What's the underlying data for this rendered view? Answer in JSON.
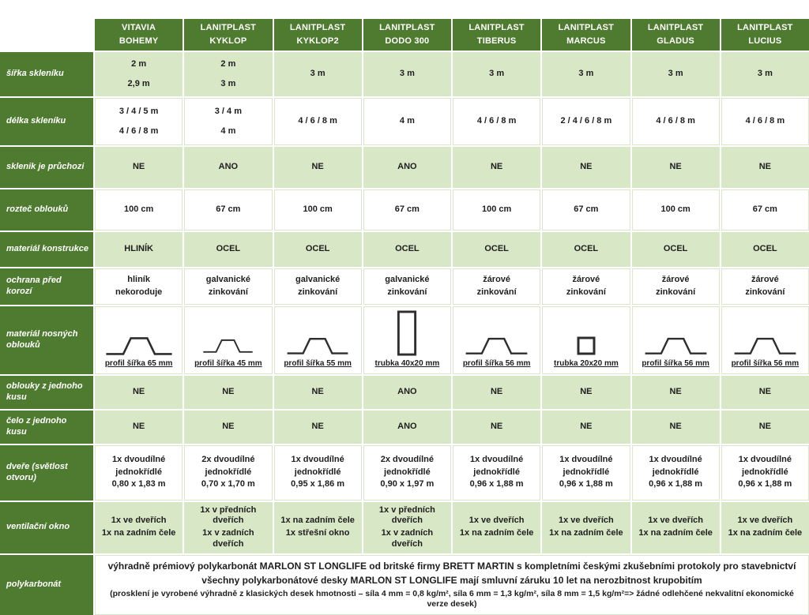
{
  "colors": {
    "dark_green": "#4e7b2f",
    "light_green": "#d8e7c6",
    "text_dark": "#1e1e1e",
    "white_cell_border": "#dbe5cd"
  },
  "table": {
    "products": [
      [
        "VITAVIA",
        "BOHEMY"
      ],
      [
        "LANITPLAST",
        "KYKLOP"
      ],
      [
        "LANITPLAST",
        "KYKLOP2"
      ],
      [
        "LANITPLAST",
        "DODO 300"
      ],
      [
        "LANITPLAST",
        "TIBERUS"
      ],
      [
        "LANITPLAST",
        "MARCUS"
      ],
      [
        "LANITPLAST",
        "GLADUS"
      ],
      [
        "LANITPLAST",
        "LUCIUS"
      ]
    ],
    "rows": [
      {
        "label": "šířka skleníku",
        "bg": "green",
        "min_h": 56,
        "spread": true,
        "cells": [
          [
            "2 m",
            "2,9 m"
          ],
          [
            "2 m",
            "3 m"
          ],
          [
            "3 m"
          ],
          [
            "3 m"
          ],
          [
            "3 m"
          ],
          [
            "3 m"
          ],
          [
            "3 m"
          ],
          [
            "3 m"
          ]
        ]
      },
      {
        "label": "délka skleníku",
        "bg": "white",
        "min_h": 60,
        "spread": true,
        "cells": [
          [
            "3 / 4 / 5 m",
            "4 / 6 / 8 m"
          ],
          [
            "3 / 4 m",
            "4 m"
          ],
          [
            "4 / 6 / 8 m"
          ],
          [
            "4 m"
          ],
          [
            "4 / 6 / 8 m"
          ],
          [
            "2 / 4 / 6 / 8 m"
          ],
          [
            "4 / 6 / 8 m"
          ],
          [
            "4 / 6 / 8 m"
          ]
        ]
      },
      {
        "label": "sklenik je průchozi",
        "bg": "green",
        "min_h": 52,
        "cells": [
          [
            "NE"
          ],
          [
            "ANO"
          ],
          [
            "NE"
          ],
          [
            "ANO"
          ],
          [
            "NE"
          ],
          [
            "NE"
          ],
          [
            "NE"
          ],
          [
            "NE"
          ]
        ]
      },
      {
        "label": "rozteč oblouků",
        "bg": "white",
        "min_h": 52,
        "cells": [
          [
            "100 cm"
          ],
          [
            "67 cm"
          ],
          [
            "100 cm"
          ],
          [
            "67 cm"
          ],
          [
            "100 cm"
          ],
          [
            "67 cm"
          ],
          [
            "100 cm"
          ],
          [
            "67 cm"
          ]
        ]
      },
      {
        "label": "materiál konstrukce",
        "bg": "green",
        "min_h": 44,
        "cells": [
          [
            "HLINÍK"
          ],
          [
            "OCEL"
          ],
          [
            "OCEL"
          ],
          [
            "OCEL"
          ],
          [
            "OCEL"
          ],
          [
            "OCEL"
          ],
          [
            "OCEL"
          ],
          [
            "OCEL"
          ]
        ]
      },
      {
        "label": "ochrana před korozí",
        "bg": "white",
        "min_h": 46,
        "cells": [
          [
            "hliník",
            "nekoroduje"
          ],
          [
            "galvanické",
            "zinkování"
          ],
          [
            "galvanické",
            "zinkování"
          ],
          [
            "galvanické",
            "zinkování"
          ],
          [
            "žárové",
            "zinkování"
          ],
          [
            "žárové",
            "zinkování"
          ],
          [
            "žárové",
            "zinkování"
          ],
          [
            "žárové",
            "zinkování"
          ]
        ]
      },
      {
        "label": "materiál nosných oblouků",
        "bg": "white",
        "min_h": 84,
        "type": "profiles",
        "profiles": [
          {
            "shape": "hat",
            "mm": 65,
            "caption": "profil šířka 65 mm"
          },
          {
            "shape": "hat",
            "mm": 45,
            "caption": "profil šířka 45 mm"
          },
          {
            "shape": "hat",
            "mm": 55,
            "caption": "profil šířka 55 mm"
          },
          {
            "shape": "vrect",
            "mm": 40,
            "caption": "trubka 40x20 mm"
          },
          {
            "shape": "hat",
            "mm": 56,
            "caption": "profil šířka 56 mm"
          },
          {
            "shape": "square",
            "mm": 20,
            "caption": "trubka 20x20 mm"
          },
          {
            "shape": "hat",
            "mm": 56,
            "caption": "profil šířka 56 mm"
          },
          {
            "shape": "hat",
            "mm": 56,
            "caption": "profil šířka 56 mm"
          }
        ]
      },
      {
        "label": "oblouky z jednoho kusu",
        "bg": "green",
        "min_h": 42,
        "cells": [
          [
            "NE"
          ],
          [
            "NE"
          ],
          [
            "NE"
          ],
          [
            "ANO"
          ],
          [
            "NE"
          ],
          [
            "NE"
          ],
          [
            "NE"
          ],
          [
            "NE"
          ]
        ]
      },
      {
        "label": "čelo z jednoho kusu",
        "bg": "green",
        "min_h": 42,
        "cells": [
          [
            "NE"
          ],
          [
            "NE"
          ],
          [
            "NE"
          ],
          [
            "ANO"
          ],
          [
            "NE"
          ],
          [
            "NE"
          ],
          [
            "NE"
          ],
          [
            "NE"
          ]
        ]
      },
      {
        "label": "dveře (světlost otvoru)",
        "bg": "white",
        "min_h": 70,
        "cells": [
          [
            "1x dvoudílné",
            "jednokřídlé",
            "0,80 x 1,83 m"
          ],
          [
            "2x dvoudílné",
            "jednokřídlé",
            "0,70 x 1,70 m"
          ],
          [
            "1x dvoudílné",
            "jednokřídlé",
            "0,95 x 1,86 m"
          ],
          [
            "2x dvoudílné",
            "jednokřídlé",
            "0,90 x 1,97 m"
          ],
          [
            "1x dvoudílné",
            "jednokřídlé",
            "0,96 x 1,88 m"
          ],
          [
            "1x dvoudílné",
            "jednokřídlé",
            "0,96 x 1,88 m"
          ],
          [
            "1x dvoudílné",
            "jednokřídlé",
            "0,96 x 1,88 m"
          ],
          [
            "1x dvoudílné",
            "jednokřídlé",
            "0,96 x 1,88 m"
          ]
        ]
      },
      {
        "label": "ventilační okno",
        "bg": "green",
        "min_h": 54,
        "cells": [
          [
            "1x ve dveřích",
            "1x na zadním čele"
          ],
          [
            "1x v předních dveřích",
            "1x v zadních dveřích"
          ],
          [
            "1x na zadním čele",
            "1x střešní okno"
          ],
          [
            "1x v předních dveřích",
            "1x v zadních dveřích"
          ],
          [
            "1x ve dveřích",
            "1x na zadním čele"
          ],
          [
            "1x ve dveřích",
            "1x na zadním čele"
          ],
          [
            "1x ve dveřích",
            "1x na zadním čele"
          ],
          [
            "1x ve dveřích",
            "1x na zadním čele"
          ]
        ]
      }
    ],
    "footer": {
      "label": "polykarbonát",
      "min_h": 72,
      "lines": [
        "výhradně prémiový polykarbonát MARLON ST LONGLIFE od britské firmy BRETT MARTIN s kompletními českými zkušebními protokoly pro stavebnictví",
        "všechny polykarbonátové desky MARLON ST LONGLIFE mají smluvní záruku 10 let na nerozbitnost krupobitím",
        "(prosklení je vyrobené výhradně z klasických desek hmotnosti – síla 4 mm = 0,8 kg/m², síla 6 mm = 1,3 kg/m², síla 8 mm = 1,5 kg/m²=> žádné odlehčené nekvalitní ekonomické verze desek)"
      ]
    }
  }
}
